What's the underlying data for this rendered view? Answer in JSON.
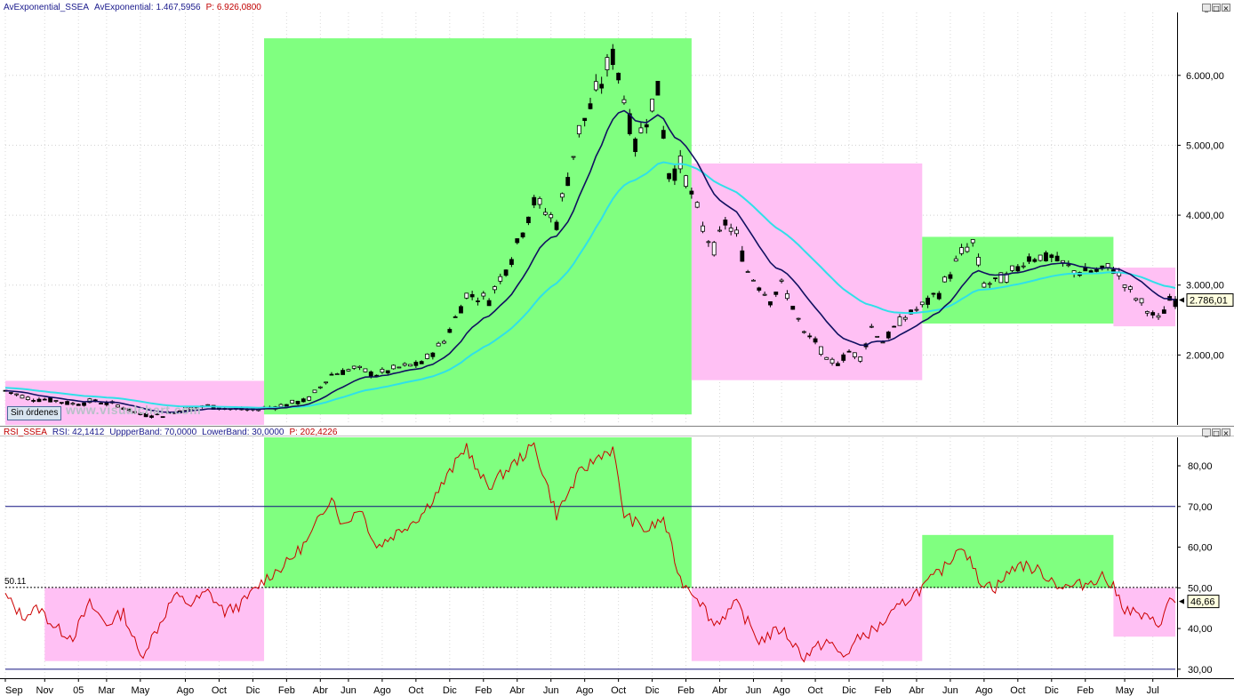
{
  "header_top": {
    "name": "AvExponential_SSEA",
    "label": "AvExponential:",
    "value": "1.467,5956",
    "p_text": "P: 6.926,0800"
  },
  "header_bottom": {
    "name": "RSI_SSEA",
    "rsi": "RSI: 42,1412",
    "upper": "UppperBand: 70,0000",
    "lower": "LowerBand: 30,0000",
    "p_text": "P: 202,4226"
  },
  "window_buttons": [
    "_",
    "□",
    "×"
  ],
  "sin_ordenes": "Sin órdenes",
  "watermark": "www.visualchart.com",
  "colors": {
    "bull_zone": "#80ff80",
    "bear_zone": "#ffc0f4",
    "ema_fast": "#101060",
    "ema_slow": "#30e0e8",
    "rsi_line": "#cc0000",
    "band": "#101080"
  },
  "chart_data": [
    {
      "type": "candlestick",
      "yticks": [
        "2.000,00",
        "3.000,00",
        "4.000,00",
        "5.000,00",
        "6.000,00"
      ],
      "ytick_values": [
        2000,
        3000,
        4000,
        5000,
        6000
      ],
      "ylim": [
        1000,
        6900
      ],
      "last_value_label": "2.786,01",
      "last_value": 2786,
      "series": [
        {
          "name": "AvExponential",
          "role": "ema_fast"
        },
        {
          "name": "AvExponential",
          "role": "ema_slow"
        }
      ],
      "zones": [
        {
          "kind": "bear",
          "x": [
            0,
            46
          ],
          "y": [
            1630,
            1000
          ]
        },
        {
          "kind": "bull",
          "x": [
            46,
            122
          ],
          "y": [
            1150,
            6530
          ]
        },
        {
          "kind": "bear",
          "x": [
            122,
            163
          ],
          "y": [
            4740,
            1640
          ]
        },
        {
          "kind": "bull",
          "x": [
            163,
            197
          ],
          "y": [
            2450,
            3690
          ]
        },
        {
          "kind": "bear",
          "x": [
            197,
            208
          ],
          "y": [
            2410,
            3250
          ]
        }
      ],
      "anchors": [
        {
          "t": 0,
          "v": 1490
        },
        {
          "t": 4,
          "v": 1380
        },
        {
          "t": 8,
          "v": 1360
        },
        {
          "t": 12,
          "v": 1300
        },
        {
          "t": 16,
          "v": 1340
        },
        {
          "t": 20,
          "v": 1280
        },
        {
          "t": 24,
          "v": 1150
        },
        {
          "t": 28,
          "v": 1140
        },
        {
          "t": 32,
          "v": 1230
        },
        {
          "t": 36,
          "v": 1270
        },
        {
          "t": 40,
          "v": 1230
        },
        {
          "t": 44,
          "v": 1210
        },
        {
          "t": 46,
          "v": 1240
        },
        {
          "t": 50,
          "v": 1290
        },
        {
          "t": 54,
          "v": 1370
        },
        {
          "t": 58,
          "v": 1720
        },
        {
          "t": 62,
          "v": 1810
        },
        {
          "t": 66,
          "v": 1720
        },
        {
          "t": 70,
          "v": 1820
        },
        {
          "t": 74,
          "v": 1880
        },
        {
          "t": 78,
          "v": 2200
        },
        {
          "t": 82,
          "v": 2860
        },
        {
          "t": 86,
          "v": 2800
        },
        {
          "t": 90,
          "v": 3400
        },
        {
          "t": 94,
          "v": 4200
        },
        {
          "t": 98,
          "v": 3900
        },
        {
          "t": 102,
          "v": 5200
        },
        {
          "t": 106,
          "v": 5900
        },
        {
          "t": 108,
          "v": 6300
        },
        {
          "t": 110,
          "v": 5700
        },
        {
          "t": 112,
          "v": 5000
        },
        {
          "t": 114,
          "v": 5400
        },
        {
          "t": 116,
          "v": 5800
        },
        {
          "t": 118,
          "v": 4600
        },
        {
          "t": 120,
          "v": 4700
        },
        {
          "t": 122,
          "v": 4300
        },
        {
          "t": 124,
          "v": 3800
        },
        {
          "t": 126,
          "v": 3500
        },
        {
          "t": 128,
          "v": 3900
        },
        {
          "t": 130,
          "v": 3700
        },
        {
          "t": 132,
          "v": 3200
        },
        {
          "t": 136,
          "v": 2800
        },
        {
          "t": 138,
          "v": 3000
        },
        {
          "t": 140,
          "v": 2700
        },
        {
          "t": 142,
          "v": 2300
        },
        {
          "t": 144,
          "v": 2200
        },
        {
          "t": 146,
          "v": 1900
        },
        {
          "t": 148,
          "v": 1900
        },
        {
          "t": 150,
          "v": 2050
        },
        {
          "t": 152,
          "v": 1950
        },
        {
          "t": 154,
          "v": 2400
        },
        {
          "t": 156,
          "v": 2200
        },
        {
          "t": 160,
          "v": 2550
        },
        {
          "t": 163,
          "v": 2700
        },
        {
          "t": 166,
          "v": 2900
        },
        {
          "t": 170,
          "v": 3450
        },
        {
          "t": 172,
          "v": 3600
        },
        {
          "t": 174,
          "v": 3000
        },
        {
          "t": 178,
          "v": 3100
        },
        {
          "t": 182,
          "v": 3400
        },
        {
          "t": 186,
          "v": 3400
        },
        {
          "t": 190,
          "v": 3200
        },
        {
          "t": 194,
          "v": 3200
        },
        {
          "t": 197,
          "v": 3250
        },
        {
          "t": 200,
          "v": 2900
        },
        {
          "t": 203,
          "v": 2650
        },
        {
          "t": 205,
          "v": 2500
        },
        {
          "t": 207,
          "v": 2790
        }
      ]
    },
    {
      "type": "line",
      "yticks": [
        "30,00",
        "40,00",
        "50,00",
        "60,00",
        "70,00",
        "80,00"
      ],
      "ytick_values": [
        30,
        40,
        50,
        60,
        70,
        80
      ],
      "ylim": [
        28,
        87
      ],
      "upper_band": 70,
      "lower_band": 30,
      "reference_level": 50.11,
      "reference_label": "50.11",
      "last_value_label": "46,66",
      "last_value": 46.66,
      "series": [
        {
          "name": "RSI",
          "role": "rsi_line"
        }
      ],
      "zones": [
        {
          "kind": "bear",
          "x": [
            7,
            46
          ],
          "y": [
            50,
            32
          ]
        },
        {
          "kind": "bull",
          "x": [
            46,
            122
          ],
          "y": [
            50,
            87
          ]
        },
        {
          "kind": "bear",
          "x": [
            122,
            163
          ],
          "y": [
            50,
            32
          ]
        },
        {
          "kind": "bull",
          "x": [
            163,
            197
          ],
          "y": [
            50,
            63
          ]
        },
        {
          "kind": "bear",
          "x": [
            197,
            208
          ],
          "y": [
            50,
            38
          ]
        }
      ],
      "anchors": [
        {
          "t": 0,
          "v": 48
        },
        {
          "t": 3,
          "v": 43
        },
        {
          "t": 6,
          "v": 45
        },
        {
          "t": 9,
          "v": 40
        },
        {
          "t": 12,
          "v": 38
        },
        {
          "t": 15,
          "v": 46
        },
        {
          "t": 18,
          "v": 41
        },
        {
          "t": 21,
          "v": 44
        },
        {
          "t": 24,
          "v": 33
        },
        {
          "t": 27,
          "v": 40
        },
        {
          "t": 30,
          "v": 48
        },
        {
          "t": 33,
          "v": 46
        },
        {
          "t": 36,
          "v": 49
        },
        {
          "t": 39,
          "v": 44
        },
        {
          "t": 42,
          "v": 46
        },
        {
          "t": 46,
          "v": 52
        },
        {
          "t": 50,
          "v": 56
        },
        {
          "t": 54,
          "v": 62
        },
        {
          "t": 58,
          "v": 73
        },
        {
          "t": 60,
          "v": 65
        },
        {
          "t": 63,
          "v": 70
        },
        {
          "t": 66,
          "v": 60
        },
        {
          "t": 70,
          "v": 64
        },
        {
          "t": 74,
          "v": 68
        },
        {
          "t": 78,
          "v": 76
        },
        {
          "t": 82,
          "v": 85
        },
        {
          "t": 84,
          "v": 78
        },
        {
          "t": 86,
          "v": 75
        },
        {
          "t": 90,
          "v": 80
        },
        {
          "t": 94,
          "v": 85
        },
        {
          "t": 98,
          "v": 68
        },
        {
          "t": 102,
          "v": 78
        },
        {
          "t": 106,
          "v": 83
        },
        {
          "t": 108,
          "v": 84
        },
        {
          "t": 110,
          "v": 68
        },
        {
          "t": 114,
          "v": 64
        },
        {
          "t": 117,
          "v": 67
        },
        {
          "t": 120,
          "v": 52
        },
        {
          "t": 123,
          "v": 48
        },
        {
          "t": 126,
          "v": 41
        },
        {
          "t": 130,
          "v": 46
        },
        {
          "t": 134,
          "v": 37
        },
        {
          "t": 138,
          "v": 40
        },
        {
          "t": 142,
          "v": 33
        },
        {
          "t": 146,
          "v": 37
        },
        {
          "t": 149,
          "v": 33
        },
        {
          "t": 152,
          "v": 38
        },
        {
          "t": 155,
          "v": 40
        },
        {
          "t": 158,
          "v": 44
        },
        {
          "t": 161,
          "v": 48
        },
        {
          "t": 163,
          "v": 50
        },
        {
          "t": 167,
          "v": 55
        },
        {
          "t": 170,
          "v": 61
        },
        {
          "t": 173,
          "v": 52
        },
        {
          "t": 176,
          "v": 50
        },
        {
          "t": 180,
          "v": 56
        },
        {
          "t": 184,
          "v": 54
        },
        {
          "t": 188,
          "v": 50
        },
        {
          "t": 192,
          "v": 51
        },
        {
          "t": 195,
          "v": 53
        },
        {
          "t": 197,
          "v": 50
        },
        {
          "t": 199,
          "v": 45
        },
        {
          "t": 202,
          "v": 43
        },
        {
          "t": 205,
          "v": 41
        },
        {
          "t": 207,
          "v": 46.66
        }
      ]
    }
  ],
  "x_axis": {
    "labels": [
      {
        "t": 0,
        "label": "Sep"
      },
      {
        "t": 7,
        "label": "Nov"
      },
      {
        "t": 13,
        "label": "05"
      },
      {
        "t": 18,
        "label": "Mar"
      },
      {
        "t": 24,
        "label": "May"
      },
      {
        "t": 32,
        "label": "Ago"
      },
      {
        "t": 38,
        "label": "Oct"
      },
      {
        "t": 44,
        "label": "Dic"
      },
      {
        "t": 50,
        "label": "Feb"
      },
      {
        "t": 56,
        "label": "Abr"
      },
      {
        "t": 61,
        "label": "Jun"
      },
      {
        "t": 67,
        "label": "Ago"
      },
      {
        "t": 73,
        "label": "Oct"
      },
      {
        "t": 79,
        "label": "Dic"
      },
      {
        "t": 85,
        "label": "Feb"
      },
      {
        "t": 91,
        "label": "Abr"
      },
      {
        "t": 97,
        "label": "Jun"
      },
      {
        "t": 103,
        "label": "Ago"
      },
      {
        "t": 109,
        "label": "Oct"
      },
      {
        "t": 115,
        "label": "Dic"
      },
      {
        "t": 121,
        "label": "Feb"
      },
      {
        "t": 127,
        "label": "Abr"
      },
      {
        "t": 133,
        "label": "Jun"
      },
      {
        "t": 138,
        "label": "Ago"
      },
      {
        "t": 144,
        "label": "Oct"
      },
      {
        "t": 150,
        "label": "Dic"
      },
      {
        "t": 156,
        "label": "Feb"
      },
      {
        "t": 162,
        "label": "Abr"
      },
      {
        "t": 168,
        "label": "Jun"
      },
      {
        "t": 174,
        "label": "Ago"
      },
      {
        "t": 180,
        "label": "Oct"
      },
      {
        "t": 186,
        "label": "Dic"
      },
      {
        "t": 192,
        "label": "Feb"
      },
      {
        "t": 199,
        "label": "May"
      },
      {
        "t": 204,
        "label": "Jul"
      }
    ]
  }
}
